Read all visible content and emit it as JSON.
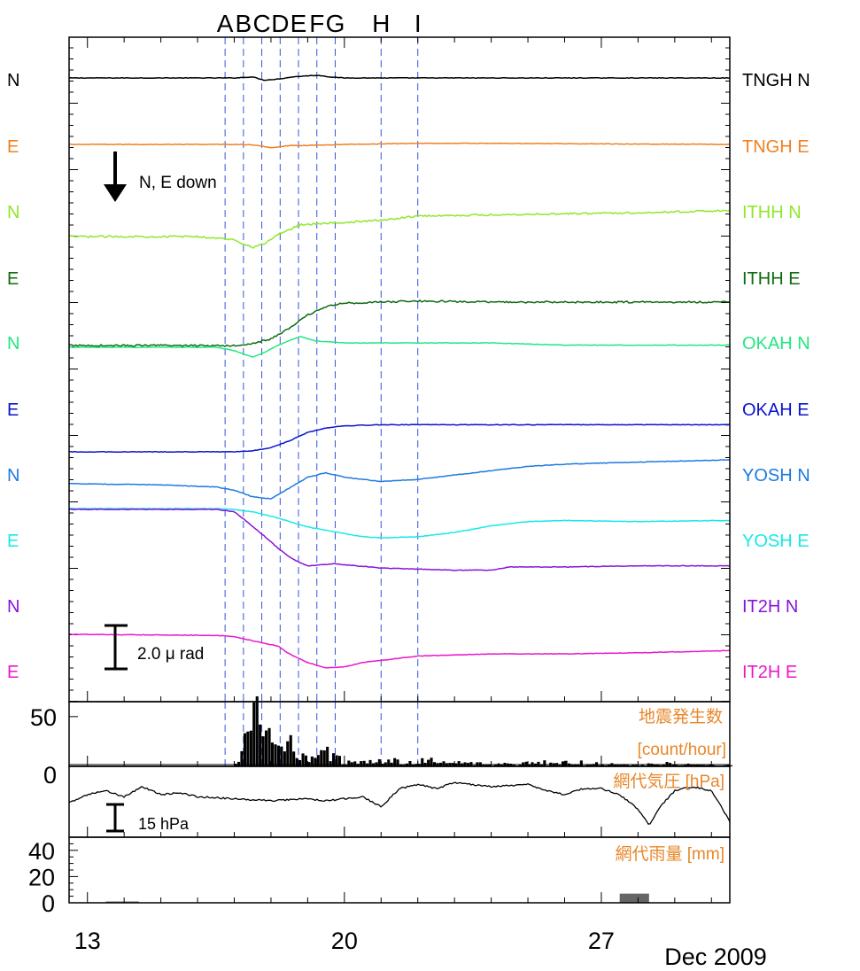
{
  "chart_data": {
    "type": "line",
    "date_label": "Dec 2009",
    "x_ticks": [
      13,
      20,
      27
    ],
    "xlim": [
      12.5,
      30.5
    ],
    "event_lines": [
      {
        "label": "A",
        "day": 16.75
      },
      {
        "label": "B",
        "day": 17.25
      },
      {
        "label": "C",
        "day": 17.75
      },
      {
        "label": "D",
        "day": 18.25
      },
      {
        "label": "E",
        "day": 18.75
      },
      {
        "label": "F",
        "day": 19.25
      },
      {
        "label": "G",
        "day": 19.75
      },
      {
        "label": "H",
        "day": 21.0
      },
      {
        "label": "I",
        "day": 22.0
      }
    ],
    "tilt_panel": {
      "scale_label": "2.0 μ rad",
      "direction_label": "N, E down",
      "series": [
        {
          "name": "TNGH N",
          "color": "#000000",
          "x": [
            12.5,
            16.5,
            17.0,
            17.5,
            17.8,
            18.2,
            18.6,
            19.0,
            19.3,
            19.6,
            20.0,
            30.5
          ],
          "y": [
            0,
            0,
            0,
            0.05,
            -0.1,
            -0.05,
            0.05,
            0.1,
            0.12,
            0.05,
            0,
            0
          ]
        },
        {
          "name": "TNGH E",
          "color": "#f08020",
          "x": [
            12.5,
            17.0,
            17.5,
            18.0,
            18.5,
            19.0,
            20.0,
            22.0,
            24.0,
            30.5
          ],
          "y": [
            0,
            0,
            -0.02,
            -0.15,
            -0.05,
            -0.05,
            0,
            0.05,
            0.05,
            0
          ]
        },
        {
          "name": "ITHH N",
          "color": "#8ee82a",
          "x": [
            12.5,
            16.0,
            17.0,
            17.5,
            17.8,
            18.2,
            18.8,
            19.3,
            20.0,
            21.0,
            22.0,
            24.0,
            26.0,
            28.0,
            30.5
          ],
          "y": [
            0,
            0,
            -0.15,
            -0.5,
            -0.35,
            0.1,
            0.55,
            0.6,
            0.65,
            0.75,
            0.95,
            1.0,
            1.05,
            1.1,
            1.2
          ]
        },
        {
          "name": "ITHH E",
          "color": "#0d6b10",
          "x": [
            12.5,
            17.0,
            17.5,
            18.0,
            18.5,
            19.0,
            19.5,
            20.0,
            21.0,
            22.0,
            24.0,
            26.0,
            28.0,
            30.5
          ],
          "y": [
            0,
            0,
            0.1,
            0.3,
            0.8,
            1.4,
            1.8,
            1.95,
            2.0,
            2.05,
            2.0,
            2.0,
            2.0,
            2.0
          ]
        },
        {
          "name": "OKAH N",
          "color": "#22e880",
          "x": [
            12.5,
            16.5,
            17.0,
            17.5,
            17.8,
            18.2,
            18.8,
            19.2,
            19.6,
            20.0,
            22.0,
            24.0,
            26.0,
            30.5
          ],
          "y": [
            0,
            0,
            -0.15,
            -0.45,
            -0.25,
            0.1,
            0.5,
            0.3,
            0.25,
            0.2,
            0.2,
            0.2,
            0.1,
            0.1
          ]
        },
        {
          "name": "OKAH E",
          "color": "#0a14cc",
          "x": [
            12.5,
            17.0,
            17.5,
            18.0,
            18.5,
            19.0,
            19.5,
            20.0,
            21.0,
            22.0,
            24.0,
            26.0,
            30.5
          ],
          "y": [
            0,
            0,
            0.05,
            0.2,
            0.5,
            0.9,
            1.1,
            1.2,
            1.25,
            1.25,
            1.25,
            1.25,
            1.25
          ]
        },
        {
          "name": "YOSH N",
          "color": "#1e7ae0",
          "x": [
            12.5,
            15.0,
            16.5,
            17.0,
            17.5,
            18.0,
            18.5,
            19.0,
            19.5,
            20.0,
            21.0,
            22.0,
            23.0,
            24.0,
            25.0,
            26.0,
            28.0,
            30.5
          ],
          "y": [
            0,
            -0.05,
            -0.15,
            -0.3,
            -0.6,
            -0.7,
            -0.2,
            0.3,
            0.5,
            0.3,
            0.1,
            0.2,
            0.4,
            0.6,
            0.8,
            0.9,
            1.0,
            1.1
          ]
        },
        {
          "name": "YOSH E",
          "color": "#18e8e8",
          "x": [
            12.5,
            16.5,
            17.0,
            17.5,
            18.0,
            18.5,
            19.0,
            19.5,
            20.0,
            20.5,
            21.0,
            22.0,
            23.0,
            24.0,
            25.0,
            26.0,
            28.0,
            30.5
          ],
          "y": [
            0,
            0,
            -0.05,
            -0.15,
            -0.35,
            -0.6,
            -0.85,
            -1.0,
            -1.15,
            -1.3,
            -1.35,
            -1.3,
            -1.1,
            -0.8,
            -0.6,
            -0.55,
            -0.6,
            -0.55
          ]
        },
        {
          "name": "IT2H N",
          "color": "#8a14d8",
          "x": [
            12.5,
            16.0,
            16.5,
            17.0,
            17.3,
            17.8,
            18.2,
            18.6,
            19.0,
            19.4,
            19.7,
            20.0,
            21.0,
            22.0,
            23.0,
            24.0,
            24.5,
            26.0,
            28.0,
            30.5
          ],
          "y": [
            0,
            0,
            0,
            -0.1,
            -0.5,
            -1.2,
            -1.8,
            -2.3,
            -2.6,
            -2.55,
            -2.5,
            -2.55,
            -2.7,
            -2.75,
            -2.8,
            -2.8,
            -2.65,
            -2.65,
            -2.6,
            -2.6
          ]
        },
        {
          "name": "IT2H E",
          "color": "#e818cc",
          "x": [
            12.5,
            16.5,
            17.0,
            17.5,
            17.8,
            18.2,
            18.5,
            19.0,
            19.5,
            20.0,
            20.5,
            21.0,
            22.0,
            23.0,
            24.0,
            26.0,
            28.0,
            30.5
          ],
          "y": [
            0,
            -0.05,
            -0.1,
            -0.3,
            -0.4,
            -0.55,
            -0.9,
            -1.3,
            -1.55,
            -1.5,
            -1.3,
            -1.2,
            -1.0,
            -0.95,
            -0.9,
            -0.9,
            -0.85,
            -0.75
          ]
        }
      ]
    },
    "seismicity_panel": {
      "title": "地震発生数",
      "unit": "[count/hour]",
      "y_ticks": [
        0,
        50
      ],
      "ylim": [
        0,
        65
      ],
      "bins_per_day": 12,
      "x": [
        17.0,
        17.25,
        17.5,
        17.75,
        18.0,
        18.25,
        18.5,
        18.75,
        19.0,
        19.25,
        19.5,
        20.0,
        20.5,
        21.0,
        22.0,
        23.0,
        24.0,
        25.0,
        26.0,
        27.0,
        28.0,
        29.0,
        30.0
      ],
      "y": [
        2,
        30,
        52,
        46,
        28,
        18,
        22,
        15,
        12,
        12,
        14,
        6,
        5,
        6,
        6,
        5,
        4,
        4,
        4,
        3,
        2,
        3,
        3
      ]
    },
    "pressure_panel": {
      "title": "網代気圧 [hPa]",
      "scale_label": "15 hPa",
      "x": [
        12.5,
        13.0,
        13.5,
        14.0,
        14.5,
        15.0,
        15.5,
        16.0,
        17.0,
        18.0,
        19.0,
        19.5,
        20.0,
        20.5,
        21.0,
        21.5,
        22.0,
        22.5,
        23.0,
        23.5,
        24.0,
        25.0,
        25.5,
        26.0,
        26.5,
        27.0,
        27.5,
        28.0,
        28.3,
        28.6,
        29.0,
        29.5,
        30.0,
        30.5
      ],
      "y": [
        1002,
        1006,
        1008,
        1005,
        1010,
        1006,
        1007,
        1005,
        1004,
        1003,
        1004,
        1003,
        1004,
        1005,
        1000,
        1009,
        1011,
        1009,
        1012,
        1011,
        1010,
        1011,
        1008,
        1006,
        1009,
        1009,
        1006,
        999,
        991,
        1000,
        1008,
        1010,
        1008,
        993
      ]
    },
    "rain_panel": {
      "title": "網代雨量 [mm]",
      "y_ticks": [
        0,
        20,
        40
      ],
      "ylim": [
        0,
        50
      ],
      "bars": [
        {
          "x0": 13.5,
          "x1": 14.4,
          "value": 1
        },
        {
          "x0": 27.5,
          "x1": 28.3,
          "value": 7
        }
      ]
    }
  }
}
